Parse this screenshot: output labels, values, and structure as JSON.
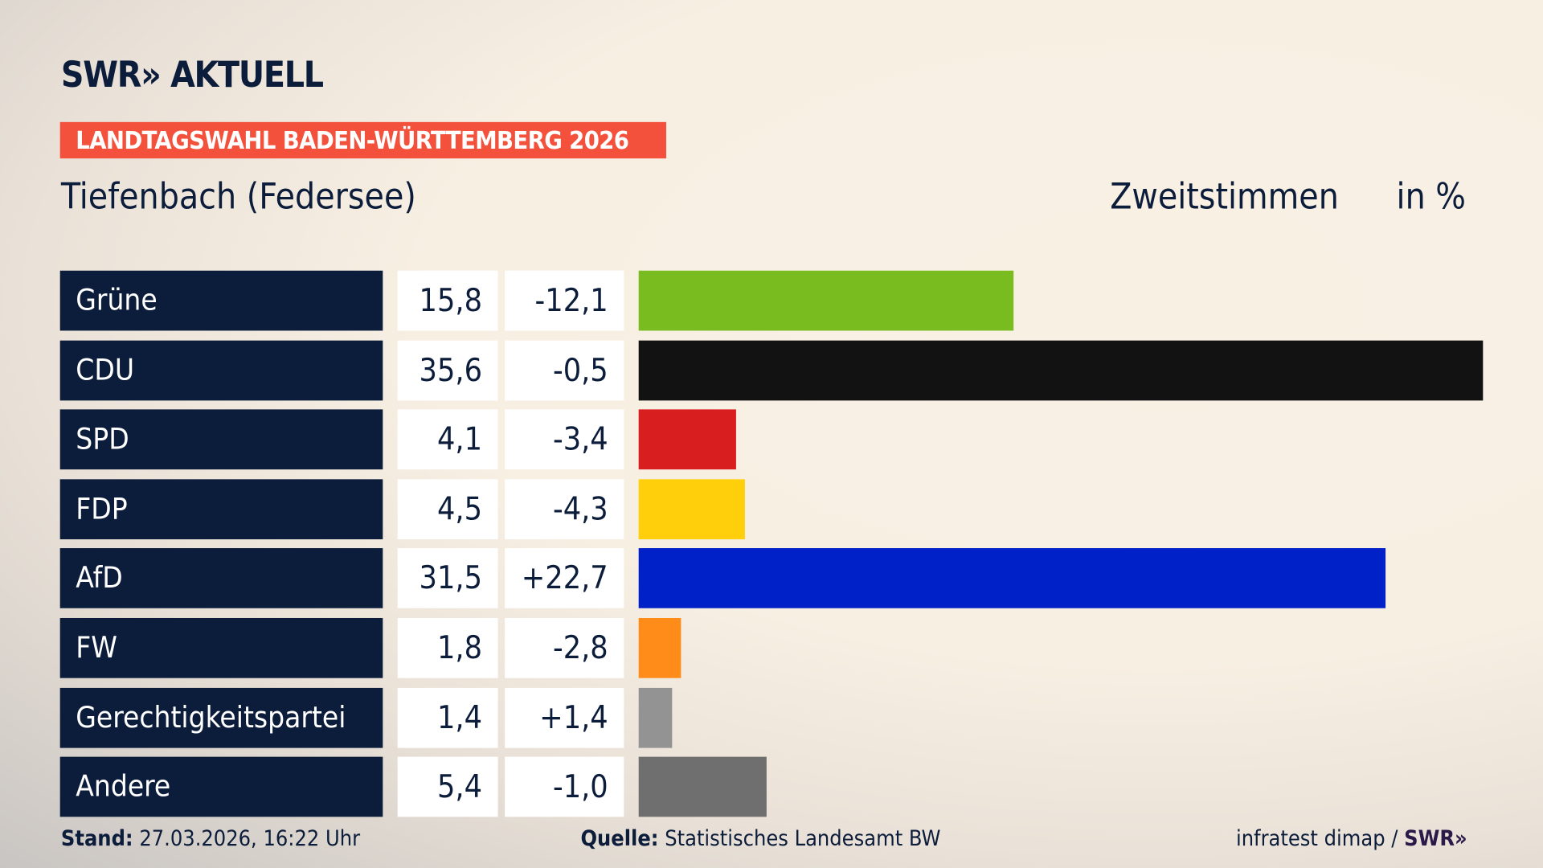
{
  "header": {
    "logo": "SWR» AKTUELL",
    "banner": "LANDTAGSWAHL BADEN-WÜRTTEMBERG 2026",
    "place": "Tiefenbach (Federsee)",
    "metric": "Zweitstimmen",
    "unit": "in %"
  },
  "chart_data": {
    "type": "bar",
    "orientation": "horizontal",
    "categories": [
      "Grüne",
      "CDU",
      "SPD",
      "FDP",
      "AfD",
      "FW",
      "Gerechtigkeitspartei",
      "Andere"
    ],
    "values": [
      15.8,
      35.6,
      4.1,
      4.5,
      31.5,
      1.8,
      1.4,
      5.4
    ],
    "values_label": [
      "15,8",
      "35,6",
      "4,1",
      "4,5",
      "31,5",
      "1,8",
      "1,4",
      "5,4"
    ],
    "change_label": [
      "-12,1",
      "-0,5",
      "-3,4",
      "-4,3",
      "+22,7",
      "-2,8",
      "+1,4",
      "-1,0"
    ],
    "colors": [
      "#79bc1f",
      "#121212",
      "#d81e1e",
      "#ffcf0b",
      "#0020c8",
      "#ff8c19",
      "#939393",
      "#6f6f6f"
    ],
    "xlim": [
      0,
      35.6
    ]
  },
  "footer": {
    "stand_label": "Stand:",
    "stand": "27.03.2026, 16:22 Uhr",
    "source_label": "Quelle:",
    "source": "Statistisches Landesamt BW",
    "credit": "infratest dimap /",
    "credit_logo": "SWR»"
  }
}
